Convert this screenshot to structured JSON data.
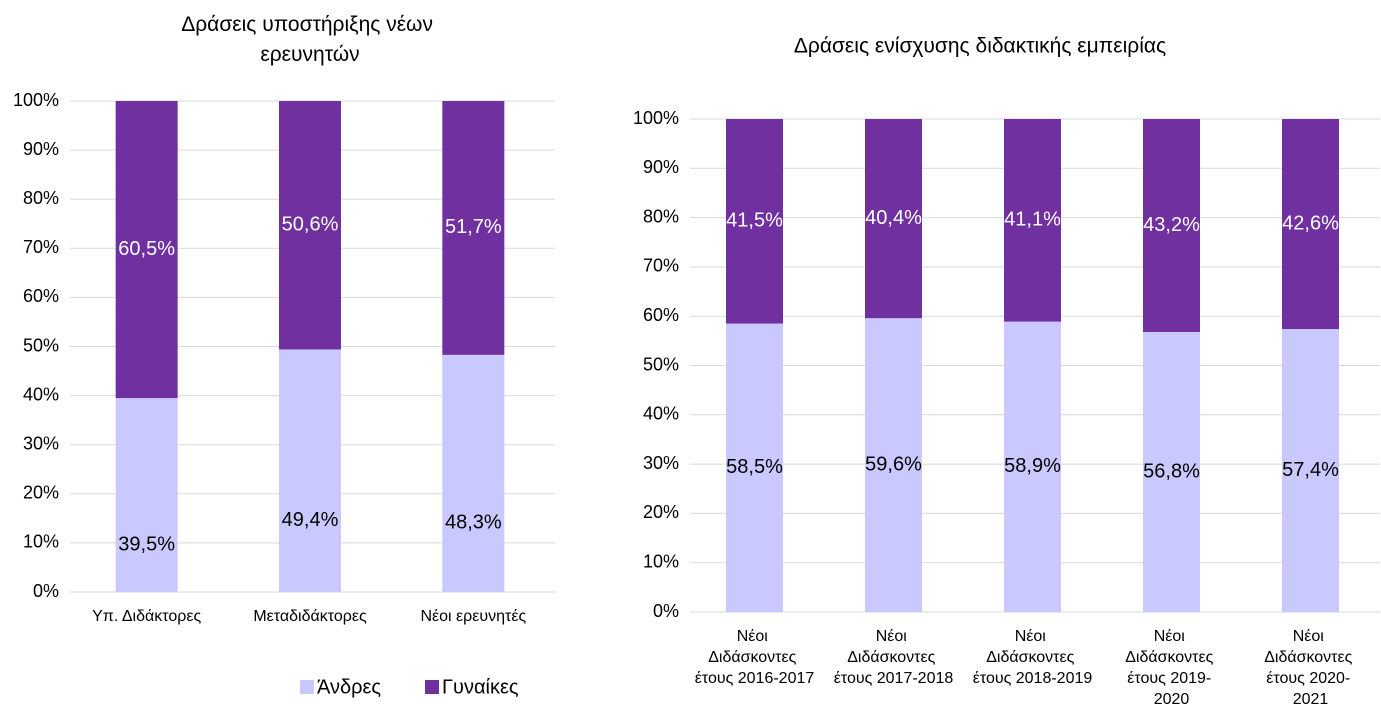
{
  "chart_data": [
    {
      "type": "bar",
      "stacked": true,
      "title": "Δράσεις υποστήριξης νέων ερευνητών",
      "categories": [
        "Υπ. Διδάκτορες",
        "Μεταδιδάκτορες",
        "Νέοι ερευνητές"
      ],
      "series": [
        {
          "name": "Άνδρες",
          "color": "#c9c9ff",
          "values": [
            39.5,
            49.4,
            48.3
          ],
          "value_labels": [
            "39,5%",
            "49,4%",
            "48,3%"
          ]
        },
        {
          "name": "Γυναίκες",
          "color": "#7030a0",
          "values": [
            60.5,
            50.6,
            51.7
          ],
          "value_labels": [
            "60,5%",
            "50,6%",
            "51,7%"
          ]
        }
      ],
      "ylim": [
        0,
        100
      ],
      "yticks": [
        {
          "value": 0,
          "label": "0%"
        },
        {
          "value": 10,
          "label": "10%"
        },
        {
          "value": 20,
          "label": "20%"
        },
        {
          "value": 30,
          "label": "30%"
        },
        {
          "value": 40,
          "label": "40%"
        },
        {
          "value": 50,
          "label": "50%"
        },
        {
          "value": 60,
          "label": "60%"
        },
        {
          "value": 70,
          "label": "70%"
        },
        {
          "value": 80,
          "label": "80%"
        },
        {
          "value": 90,
          "label": "90%"
        },
        {
          "value": 100,
          "label": "100%"
        }
      ],
      "grid": true,
      "legend": "bottom"
    },
    {
      "type": "bar",
      "stacked": true,
      "title": "Δράσεις ενίσχυσης διδακτικής εμπειρίας",
      "categories": [
        "Νέοι Διδάσκοντες έτους 2016-2017",
        "Νέοι Διδάσκοντες έτους 2017-2018",
        "Νέοι Διδάσκοντες έτους 2018-2019",
        "Νέοι Διδάσκοντες έτους 2019-2020",
        "Νέοι Διδάσκοντες έτους 2020-2021"
      ],
      "series": [
        {
          "name": "Άνδρες",
          "color": "#c9c9ff",
          "values": [
            58.5,
            59.6,
            58.9,
            56.8,
            57.4
          ],
          "value_labels": [
            "58,5%",
            "59,6%",
            "58,9%",
            "56,8%",
            "57,4%"
          ]
        },
        {
          "name": "Γυναίκες",
          "color": "#7030a0",
          "values": [
            41.5,
            40.4,
            41.1,
            43.2,
            42.6
          ],
          "value_labels": [
            "41,5%",
            "40,4%",
            "41,1%",
            "43,2%",
            "42,6%"
          ]
        }
      ],
      "ylim": [
        0,
        100
      ],
      "yticks": [
        {
          "value": 0,
          "label": "0%"
        },
        {
          "value": 10,
          "label": "10%"
        },
        {
          "value": 20,
          "label": "20%"
        },
        {
          "value": 30,
          "label": "30%"
        },
        {
          "value": 40,
          "label": "40%"
        },
        {
          "value": 50,
          "label": "50%"
        },
        {
          "value": 60,
          "label": "60%"
        },
        {
          "value": 70,
          "label": "70%"
        },
        {
          "value": 80,
          "label": "80%"
        },
        {
          "value": 90,
          "label": "90%"
        },
        {
          "value": 100,
          "label": "100%"
        }
      ],
      "grid": true
    }
  ]
}
